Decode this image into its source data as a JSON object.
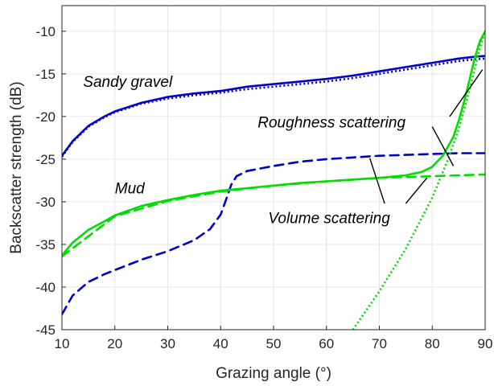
{
  "chart_data": {
    "type": "line",
    "title": "",
    "xlabel": "Grazing angle (°)",
    "ylabel": "Backscatter strength (dB)",
    "xlim": [
      10,
      90
    ],
    "ylim": [
      -45,
      -7
    ],
    "xticks": [
      10,
      20,
      30,
      40,
      50,
      60,
      70,
      80,
      90
    ],
    "xtick_labels": [
      "10",
      "20",
      "30",
      "40",
      "50",
      "60",
      "70",
      "80",
      "90"
    ],
    "yticks": [
      -45,
      -40,
      -35,
      -30,
      -25,
      -20,
      -15,
      -10
    ],
    "ytick_labels": [
      "-45",
      "-40",
      "-35",
      "-30",
      "-25",
      "-20",
      "-15",
      "-10"
    ],
    "grid": true,
    "series": [
      {
        "name": "",
        "color": "#0000cc",
        "dash": "solid",
        "x": [
          10,
          12,
          15,
          18,
          20,
          25,
          30,
          35,
          40,
          45,
          50,
          55,
          60,
          65,
          70,
          75,
          80,
          85,
          88,
          90
        ],
        "y": [
          -24.6,
          -22.9,
          -21.1,
          -20.0,
          -19.4,
          -18.4,
          -17.7,
          -17.3,
          -17.0,
          -16.5,
          -16.2,
          -15.9,
          -15.6,
          -15.2,
          -14.7,
          -14.2,
          -13.7,
          -13.2,
          -13.0,
          -12.9
        ]
      },
      {
        "name": "",
        "color": "#0000cc",
        "dash": "dotted",
        "x": [
          10,
          12,
          15,
          18,
          20,
          25,
          30,
          35,
          40,
          45,
          50,
          55,
          60,
          65,
          70,
          75,
          80,
          85,
          88,
          90
        ],
        "y": [
          -24.7,
          -23.0,
          -21.2,
          -20.1,
          -19.5,
          -18.5,
          -17.9,
          -17.5,
          -17.2,
          -16.8,
          -16.5,
          -16.2,
          -15.9,
          -15.5,
          -15.0,
          -14.5,
          -14.0,
          -13.5,
          -13.3,
          -13.2
        ]
      },
      {
        "name": "",
        "color": "#0000cc",
        "dash": "dashed",
        "x": [
          10,
          12,
          15,
          18,
          20,
          25,
          30,
          35,
          38,
          40,
          41,
          42,
          43,
          45,
          50,
          55,
          60,
          65,
          70,
          75,
          80,
          85,
          90
        ],
        "y": [
          -43.2,
          -41.0,
          -39.4,
          -38.5,
          -38.0,
          -36.8,
          -35.8,
          -34.5,
          -33.2,
          -31.5,
          -29.8,
          -28.0,
          -27.0,
          -26.4,
          -25.8,
          -25.3,
          -25.0,
          -24.8,
          -24.6,
          -24.5,
          -24.4,
          -24.3,
          -24.3
        ]
      },
      {
        "name": "",
        "color": "#00dd00",
        "dash": "solid",
        "x": [
          10,
          12,
          15,
          18,
          20,
          25,
          30,
          35,
          40,
          45,
          50,
          55,
          60,
          65,
          70,
          75,
          78,
          80,
          82,
          84,
          85,
          86,
          87,
          88,
          89,
          90
        ],
        "y": [
          -36.3,
          -34.8,
          -33.3,
          -32.3,
          -31.6,
          -30.5,
          -29.8,
          -29.2,
          -28.7,
          -28.4,
          -28.1,
          -27.8,
          -27.6,
          -27.4,
          -27.2,
          -26.9,
          -26.5,
          -25.9,
          -24.6,
          -22.4,
          -20.5,
          -18.3,
          -15.8,
          -13.2,
          -11.2,
          -10.0
        ]
      },
      {
        "name": "",
        "color": "#00dd00",
        "dash": "dashed",
        "x": [
          10,
          20,
          30,
          40,
          50,
          60,
          70,
          80,
          90
        ],
        "y": [
          -36.4,
          -31.7,
          -29.9,
          -28.8,
          -28.1,
          -27.6,
          -27.2,
          -27.0,
          -26.8
        ]
      },
      {
        "name": "",
        "color": "#00dd00",
        "dash": "dotted",
        "x": [
          65,
          70,
          75,
          80,
          83,
          85,
          87,
          89,
          90
        ],
        "y": [
          -45.0,
          -40.5,
          -35.5,
          -29.5,
          -25.0,
          -21.5,
          -17.0,
          -12.0,
          -10.0
        ]
      }
    ],
    "annotations": [
      {
        "text": "Sandy gravel",
        "x": 14,
        "y": -16.5
      },
      {
        "text": "Roughness scattering",
        "x": 47,
        "y": -21.3
      },
      {
        "text": "Mud",
        "x": 20,
        "y": -29.0
      },
      {
        "text": "Volume scattering",
        "x": 49,
        "y": -32.5
      }
    ],
    "leader_lines": [
      {
        "from": [
          80,
          -21.2
        ],
        "to": [
          84,
          -25.8
        ]
      },
      {
        "from": [
          83.3,
          -20.0
        ],
        "to": [
          89.5,
          -14.5
        ]
      },
      {
        "from": [
          71,
          -30.2
        ],
        "to": [
          68.2,
          -24.9
        ]
      },
      {
        "from": [
          75,
          -30.2
        ],
        "to": [
          79,
          -27.2
        ]
      }
    ]
  }
}
